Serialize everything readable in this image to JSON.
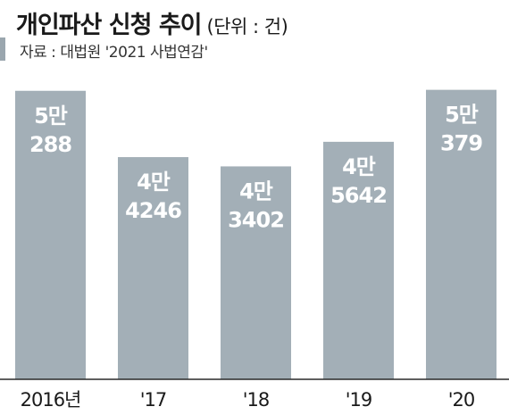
{
  "header": {
    "title": "개인파산 신청 추이",
    "unit": "(단위 : 건)",
    "source": "자료 : 대법원 '2021 사법연감'"
  },
  "chart_data": {
    "type": "bar",
    "title": "개인파산 신청 추이",
    "unit": "(단위 : 건)",
    "categories": [
      "2016년",
      "'17",
      "'18",
      "'19",
      "'20"
    ],
    "values": [
      50288,
      44246,
      43402,
      45642,
      50379
    ],
    "data_labels": [
      [
        "5만",
        "288"
      ],
      [
        "4만",
        "4246"
      ],
      [
        "4만",
        "3402"
      ],
      [
        "4만",
        "5642"
      ],
      [
        "5만",
        "379"
      ]
    ],
    "ylim": [
      0,
      51000
    ],
    "colors": {
      "bar": "#a3afb7",
      "label": "#ffffff",
      "source_marker": "#9aa6ae"
    },
    "grid": false,
    "legend": "none"
  }
}
